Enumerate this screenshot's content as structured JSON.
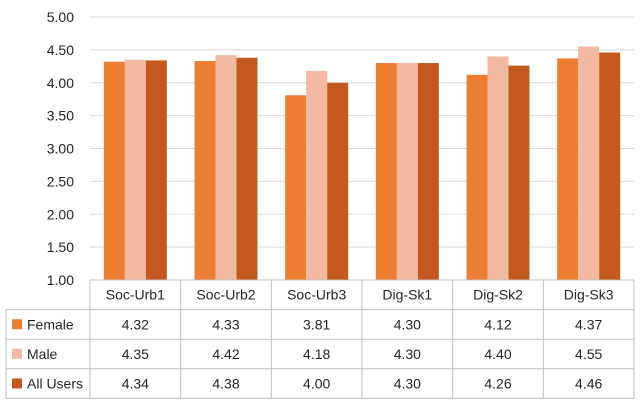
{
  "chart_data": {
    "type": "bar",
    "categories": [
      "Soc-Urb1",
      "Soc-Urb2",
      "Soc-Urb3",
      "Dig-Sk1",
      "Dig-Sk2",
      "Dig-Sk3"
    ],
    "series": [
      {
        "name": "Female",
        "values": [
          4.32,
          4.33,
          3.81,
          4.3,
          4.12,
          4.37
        ]
      },
      {
        "name": "Male",
        "values": [
          4.35,
          4.42,
          4.18,
          4.3,
          4.4,
          4.55
        ]
      },
      {
        "name": "All Users",
        "values": [
          4.34,
          4.38,
          4.0,
          4.3,
          4.26,
          4.46
        ]
      }
    ],
    "series_colors": [
      "#ed7d31",
      "#f4b9a2",
      "#c55a21"
    ],
    "table_values": [
      [
        "4.32",
        "4.33",
        "3.81",
        "4.30",
        "4.12",
        "4.37"
      ],
      [
        "4.35",
        "4.42",
        "4.18",
        "4.30",
        "4.40",
        "4.55"
      ],
      [
        "4.34",
        "4.38",
        "4.00",
        "4.30",
        "4.26",
        "4.46"
      ]
    ],
    "y_ticks": [
      "1.00",
      "1.50",
      "2.00",
      "2.50",
      "3.00",
      "3.50",
      "4.00",
      "4.50",
      "5.00"
    ],
    "ylim": [
      1.0,
      5.0
    ],
    "grid": true,
    "legend": "data-table",
    "title": "",
    "xlabel": "",
    "ylabel": ""
  }
}
